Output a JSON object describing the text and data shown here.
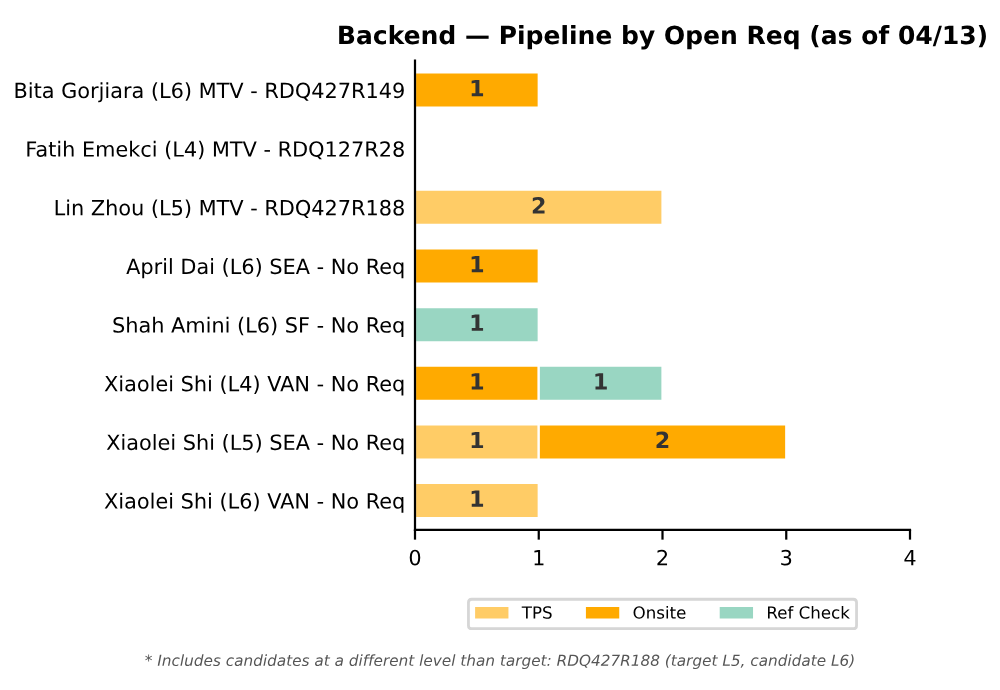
{
  "chart_data": {
    "type": "bar",
    "orientation": "horizontal",
    "stacked": true,
    "title": "Backend — Pipeline by Open Req (as of 04/13)",
    "categories": [
      "Bita Gorjiara (L6) MTV - RDQ427R149",
      "Fatih Emekci (L4) MTV - RDQ127R28",
      "Lin Zhou (L5) MTV - RDQ427R188",
      "April Dai (L6) SEA - No Req",
      "Shah Amini (L6) SF - No Req",
      "Xiaolei Shi (L4) VAN - No Req",
      "Xiaolei Shi (L5) SEA - No Req",
      "Xiaolei Shi (L6) VAN - No Req"
    ],
    "series": [
      {
        "name": "TPS",
        "color": "#ffcc66",
        "values": [
          null,
          null,
          2,
          null,
          null,
          null,
          1,
          1
        ]
      },
      {
        "name": "Onsite",
        "color": "#ffaa00",
        "values": [
          1,
          null,
          null,
          1,
          null,
          1,
          2,
          null
        ]
      },
      {
        "name": "Ref Check",
        "color": "#99d6c2",
        "values": [
          null,
          null,
          null,
          null,
          1,
          1,
          null,
          null
        ]
      }
    ],
    "xlim": [
      0,
      4
    ],
    "xticks": [
      0,
      1,
      2,
      3,
      4
    ],
    "data_labels": true,
    "grid": false,
    "legend": "bottom",
    "annotations": [
      "* Includes candidates at a different level than target: RDQ427R188 (target L5, candidate L6)"
    ]
  }
}
